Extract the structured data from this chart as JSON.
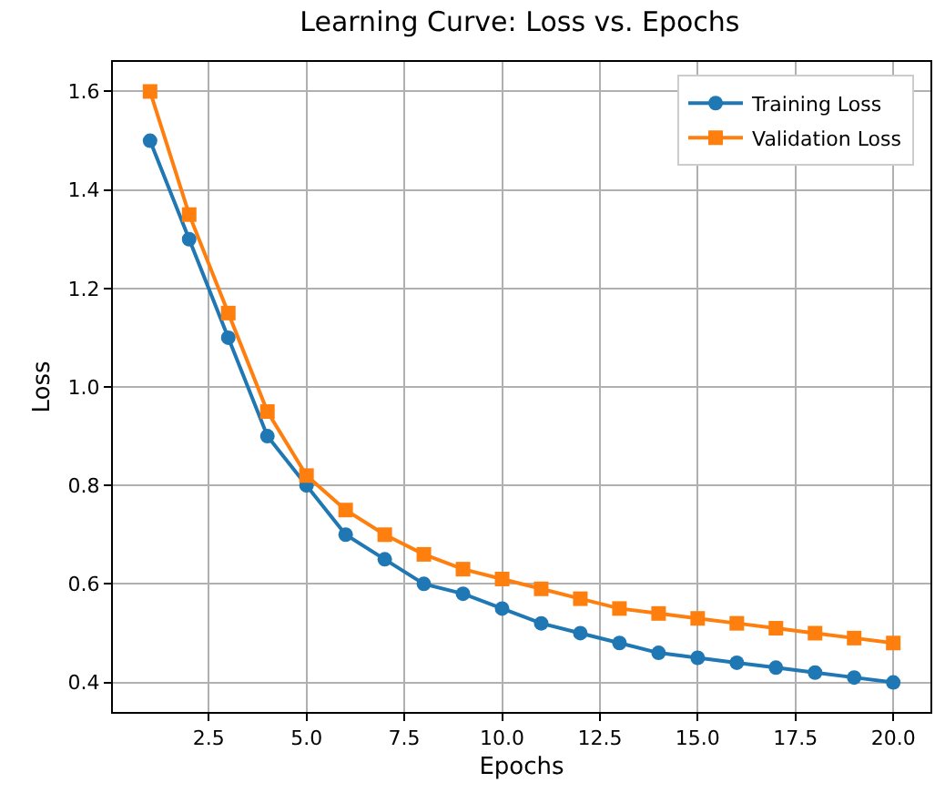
{
  "chart_data": {
    "type": "line",
    "title": "Learning Curve: Loss vs. Epochs",
    "xlabel": "Epochs",
    "ylabel": "Loss",
    "x": [
      1,
      2,
      3,
      4,
      5,
      6,
      7,
      8,
      9,
      10,
      11,
      12,
      13,
      14,
      15,
      16,
      17,
      18,
      19,
      20
    ],
    "series": [
      {
        "name": "Training Loss",
        "color": "#1f77b4",
        "marker": "circle",
        "values": [
          1.5,
          1.3,
          1.1,
          0.9,
          0.8,
          0.7,
          0.65,
          0.6,
          0.58,
          0.55,
          0.52,
          0.5,
          0.48,
          0.46,
          0.45,
          0.44,
          0.43,
          0.42,
          0.41,
          0.4
        ]
      },
      {
        "name": "Validation Loss",
        "color": "#ff7f0e",
        "marker": "square",
        "values": [
          1.6,
          1.35,
          1.15,
          0.95,
          0.82,
          0.75,
          0.7,
          0.66,
          0.63,
          0.61,
          0.59,
          0.57,
          0.55,
          0.54,
          0.53,
          0.52,
          0.51,
          0.5,
          0.49,
          0.48
        ]
      }
    ],
    "xlim": [
      0.05,
      20.95
    ],
    "ylim": [
      0.34,
      1.66
    ],
    "xticks": [
      {
        "value": 2.5,
        "label": "2.5"
      },
      {
        "value": 5,
        "label": "5.0"
      },
      {
        "value": 7.5,
        "label": "7.5"
      },
      {
        "value": 10,
        "label": "10.0"
      },
      {
        "value": 12.5,
        "label": "12.5"
      },
      {
        "value": 15,
        "label": "15.0"
      },
      {
        "value": 17.5,
        "label": "17.5"
      },
      {
        "value": 20,
        "label": "20.0"
      }
    ],
    "yticks": [
      {
        "value": 0.4,
        "label": "0.4"
      },
      {
        "value": 0.6,
        "label": "0.6"
      },
      {
        "value": 0.8,
        "label": "0.8"
      },
      {
        "value": 1.0,
        "label": "1.0"
      },
      {
        "value": 1.2,
        "label": "1.2"
      },
      {
        "value": 1.4,
        "label": "1.4"
      },
      {
        "value": 1.6,
        "label": "1.6"
      }
    ],
    "grid": true,
    "legend": "top right",
    "line_style": "solid"
  }
}
